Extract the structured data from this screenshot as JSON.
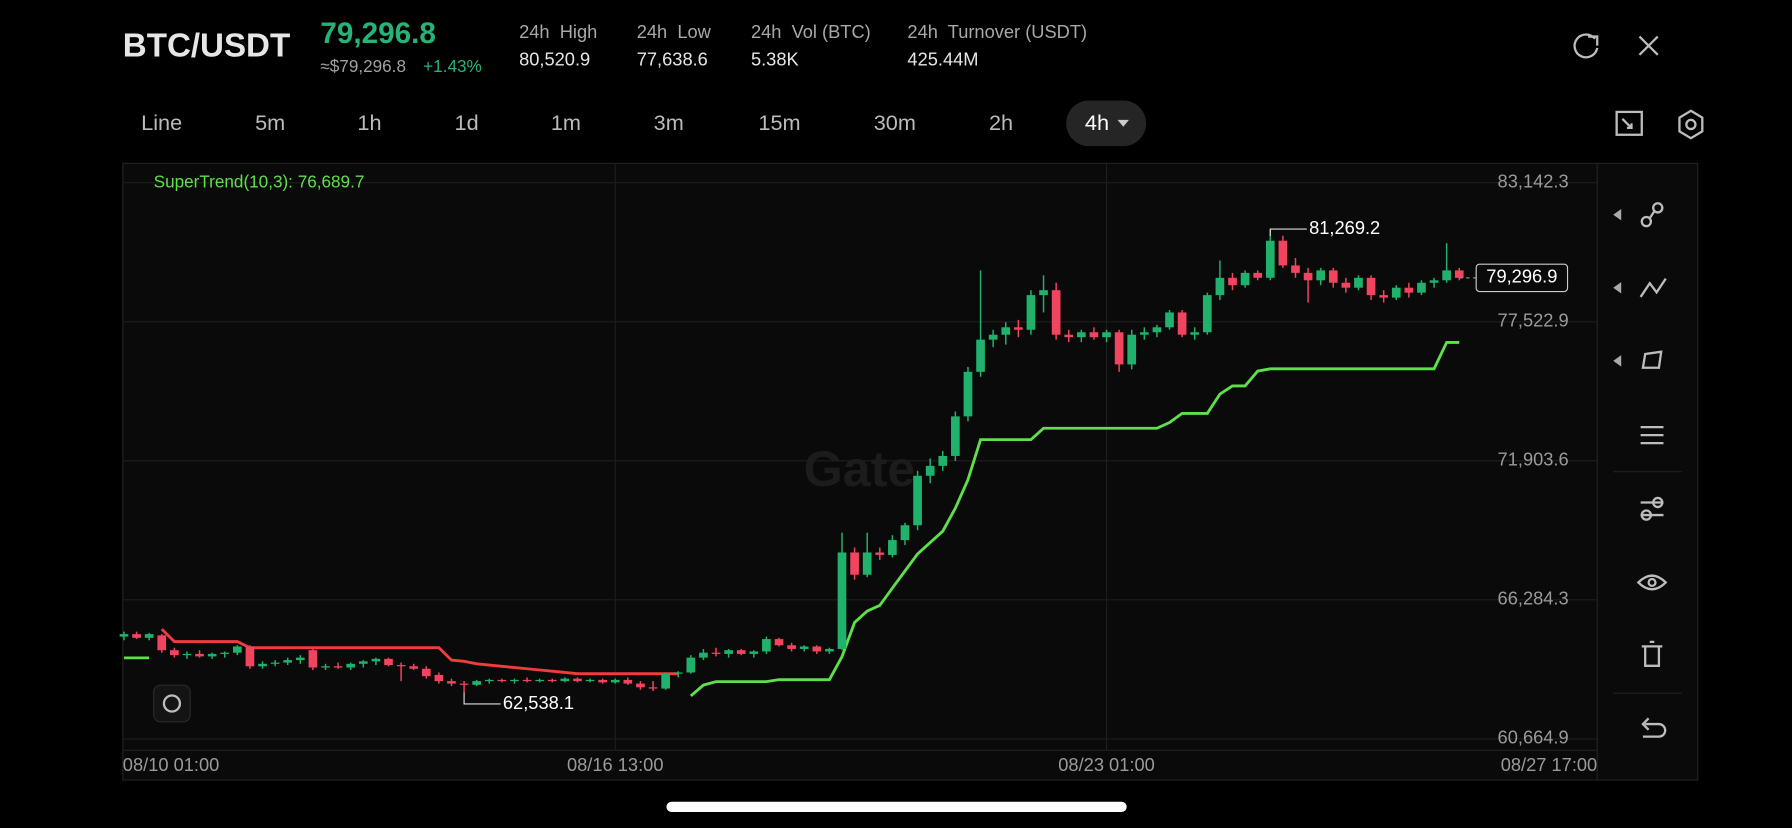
{
  "header": {
    "symbol": "BTC/USDT",
    "price": "79,296.8",
    "price_usd": "≈$79,296.8",
    "change": "+1.43%",
    "stats": [
      {
        "label": "24h  High",
        "value": "80,520.9"
      },
      {
        "label": "24h  Low",
        "value": "77,638.6"
      },
      {
        "label": "24h  Vol (BTC)",
        "value": "5.38K"
      },
      {
        "label": "24h  Turnover (USDT)",
        "value": "425.44M"
      }
    ]
  },
  "tabs": [
    "Line",
    "5m",
    "1h",
    "1d",
    "1m",
    "3m",
    "15m",
    "30m",
    "2h",
    "4h"
  ],
  "chart_data": {
    "type": "candlestick",
    "indicator_label": "SuperTrend(10,3): 76,689.7",
    "watermark": "Gate",
    "up_color": "#20b26c",
    "down_color": "#f0445f",
    "grid": true,
    "categories": [
      "08/10 01:00",
      null,
      null,
      null,
      null,
      null,
      null,
      null,
      null,
      null,
      null,
      null,
      null,
      null,
      null,
      null,
      null,
      null,
      null,
      null,
      null,
      null,
      null,
      null,
      null,
      null,
      null,
      null,
      null,
      null,
      null,
      null,
      null,
      null,
      null,
      null,
      null,
      null,
      null,
      "08/16 13:00",
      null,
      null,
      null,
      null,
      null,
      null,
      null,
      null,
      null,
      null,
      null,
      null,
      null,
      null,
      null,
      null,
      null,
      null,
      null,
      null,
      null,
      null,
      null,
      null,
      null,
      null,
      null,
      null,
      null,
      null,
      null,
      null,
      null,
      null,
      null,
      null,
      null,
      null,
      "08/23 01:00",
      null,
      null,
      null,
      null,
      null,
      null,
      null,
      null,
      null,
      null,
      null,
      null,
      null,
      null,
      null,
      null,
      null,
      null,
      null,
      null,
      null,
      null,
      null,
      null,
      null,
      null,
      null,
      "08/27 17:00"
    ],
    "ohlc": [
      [
        64800,
        65000,
        64650,
        64900
      ],
      [
        64900,
        65000,
        64700,
        64750
      ],
      [
        64750,
        64950,
        64650,
        64900
      ],
      [
        64850,
        64900,
        64150,
        64250
      ],
      [
        64250,
        64350,
        63950,
        64050
      ],
      [
        64050,
        64200,
        63900,
        64100
      ],
      [
        64100,
        64250,
        63950,
        64000
      ],
      [
        64000,
        64150,
        63900,
        64100
      ],
      [
        64100,
        64200,
        63950,
        64150
      ],
      [
        64150,
        64450,
        64050,
        64400
      ],
      [
        64400,
        64450,
        63500,
        63600
      ],
      [
        63600,
        63800,
        63500,
        63700
      ],
      [
        63700,
        63850,
        63600,
        63750
      ],
      [
        63750,
        63950,
        63650,
        63850
      ],
      [
        63850,
        64050,
        63700,
        63950
      ],
      [
        64250,
        64300,
        63450,
        63550
      ],
      [
        63550,
        63700,
        63450,
        63600
      ],
      [
        63600,
        63750,
        63500,
        63550
      ],
      [
        63550,
        63750,
        63450,
        63700
      ],
      [
        63700,
        63850,
        63550,
        63800
      ],
      [
        63800,
        63950,
        63650,
        63900
      ],
      [
        63900,
        63950,
        63600,
        63650
      ],
      [
        63650,
        63750,
        63000,
        63600
      ],
      [
        63600,
        63700,
        63450,
        63500
      ],
      [
        63500,
        63600,
        63100,
        63200
      ],
      [
        63250,
        63350,
        62900,
        63000
      ],
      [
        63000,
        63100,
        62800,
        62900
      ],
      [
        62900,
        63000,
        62538.1,
        62850
      ],
      [
        62850,
        63050,
        62800,
        63000
      ],
      [
        63000,
        63100,
        62900,
        63050
      ],
      [
        63050,
        63100,
        62950,
        63000
      ],
      [
        63000,
        63100,
        62900,
        63050
      ],
      [
        63050,
        63150,
        62950,
        63000
      ],
      [
        63000,
        63100,
        62950,
        63050
      ],
      [
        63050,
        63100,
        62950,
        63000
      ],
      [
        63000,
        63150,
        62950,
        63100
      ],
      [
        63100,
        63150,
        62950,
        63000
      ],
      [
        63000,
        63100,
        62950,
        63050
      ],
      [
        63050,
        63100,
        62900,
        62950
      ],
      [
        62950,
        63100,
        62900,
        63050
      ],
      [
        63050,
        63150,
        62850,
        62900
      ],
      [
        62900,
        63000,
        62650,
        62750
      ],
      [
        62750,
        63000,
        62600,
        62700
      ],
      [
        62700,
        63350,
        62650,
        63300
      ],
      [
        63300,
        63400,
        63150,
        63350
      ],
      [
        63350,
        64050,
        63300,
        63950
      ],
      [
        63950,
        64300,
        63850,
        64150
      ],
      [
        64150,
        64350,
        64000,
        64100
      ],
      [
        64100,
        64300,
        63950,
        64250
      ],
      [
        64250,
        64300,
        64050,
        64100
      ],
      [
        64100,
        64250,
        63950,
        64200
      ],
      [
        64200,
        64800,
        64100,
        64700
      ],
      [
        64700,
        64750,
        64400,
        64450
      ],
      [
        64450,
        64550,
        64200,
        64300
      ],
      [
        64300,
        64450,
        64200,
        64400
      ],
      [
        64400,
        64450,
        64100,
        64200
      ],
      [
        64200,
        64350,
        64100,
        64300
      ],
      [
        64300,
        69000,
        64250,
        68200
      ],
      [
        68200,
        68400,
        67100,
        67300
      ],
      [
        67300,
        69000,
        67200,
        68200
      ],
      [
        68200,
        68400,
        67900,
        68100
      ],
      [
        68100,
        68900,
        68000,
        68700
      ],
      [
        68700,
        69400,
        68500,
        69300
      ],
      [
        69300,
        71500,
        69100,
        71300
      ],
      [
        71300,
        72000,
        71000,
        71700
      ],
      [
        71700,
        72300,
        71500,
        72100
      ],
      [
        72100,
        73900,
        71900,
        73700
      ],
      [
        73700,
        75700,
        73500,
        75500
      ],
      [
        75500,
        79600,
        75300,
        76800
      ],
      [
        76800,
        77200,
        76500,
        77000
      ],
      [
        77000,
        77500,
        76600,
        77300
      ],
      [
        77300,
        77600,
        76900,
        77200
      ],
      [
        77200,
        78800,
        77000,
        78600
      ],
      [
        78600,
        79400,
        77900,
        78800
      ],
      [
        78800,
        79100,
        76800,
        77000
      ],
      [
        77000,
        77200,
        76700,
        76900
      ],
      [
        76900,
        77200,
        76700,
        77100
      ],
      [
        77100,
        77300,
        76800,
        76900
      ],
      [
        76900,
        77200,
        76700,
        77100
      ],
      [
        77100,
        77200,
        75500,
        75800
      ],
      [
        75800,
        77200,
        75600,
        77000
      ],
      [
        77000,
        77300,
        76800,
        77100
      ],
      [
        77100,
        77400,
        76900,
        77300
      ],
      [
        77300,
        78000,
        77200,
        77900
      ],
      [
        77900,
        78000,
        76900,
        77000
      ],
      [
        77000,
        77300,
        76800,
        77100
      ],
      [
        77100,
        78700,
        77000,
        78600
      ],
      [
        78600,
        80000,
        78400,
        79300
      ],
      [
        79300,
        79500,
        78800,
        79000
      ],
      [
        79000,
        79600,
        78900,
        79500
      ],
      [
        79500,
        79600,
        79200,
        79300
      ],
      [
        79300,
        81269.2,
        79200,
        80800
      ],
      [
        80800,
        81000,
        79700,
        79800
      ],
      [
        79800,
        80100,
        79300,
        79500
      ],
      [
        79500,
        79700,
        78300,
        79200
      ],
      [
        79200,
        79700,
        79000,
        79600
      ],
      [
        79600,
        79700,
        78900,
        79100
      ],
      [
        79100,
        79300,
        78700,
        78900
      ],
      [
        78900,
        79400,
        78800,
        79300
      ],
      [
        79300,
        79400,
        78400,
        78600
      ],
      [
        78600,
        78800,
        78300,
        78500
      ],
      [
        78500,
        79000,
        78400,
        78900
      ],
      [
        78900,
        79100,
        78500,
        78700
      ],
      [
        78700,
        79200,
        78600,
        79100
      ],
      [
        79100,
        79300,
        78900,
        79200
      ],
      [
        79200,
        80700,
        79100,
        79600
      ],
      [
        79600,
        79700,
        79200,
        79296.9
      ]
    ],
    "supertrend_up": {
      "color": "#5ee04a",
      "values": [
        63940,
        63940,
        63940,
        null,
        null,
        null,
        null,
        null,
        null,
        null,
        null,
        null,
        null,
        null,
        null,
        null,
        null,
        null,
        null,
        null,
        null,
        null,
        null,
        null,
        null,
        null,
        null,
        null,
        null,
        null,
        null,
        null,
        null,
        null,
        null,
        null,
        null,
        null,
        null,
        null,
        null,
        null,
        null,
        null,
        null,
        62400,
        62840,
        62980,
        62980,
        62980,
        62980,
        62980,
        63060,
        63060,
        63060,
        63060,
        63060,
        63990,
        65370,
        65830,
        66060,
        66760,
        67450,
        68140,
        68600,
        69060,
        69990,
        71140,
        72760,
        72760,
        72760,
        72760,
        72760,
        73220,
        73220,
        73220,
        73220,
        73220,
        73220,
        73220,
        73220,
        73220,
        73220,
        73450,
        73820,
        73820,
        73820,
        74600,
        74930,
        74930,
        75530,
        75620,
        75620,
        75620,
        75620,
        75620,
        75620,
        75620,
        75620,
        75620,
        75620,
        75620,
        75620,
        75620,
        75620,
        76689.7,
        76689.7
      ]
    },
    "supertrend_down": {
      "color": "#f03c3c",
      "values": [
        null,
        null,
        null,
        65100,
        64600,
        64600,
        64600,
        64600,
        64600,
        64600,
        64350,
        64350,
        64350,
        64350,
        64350,
        64350,
        64350,
        64350,
        64350,
        64350,
        64350,
        64350,
        64350,
        64350,
        64350,
        64350,
        63850,
        63800,
        63700,
        63650,
        63600,
        63550,
        63500,
        63450,
        63400,
        63350,
        63300,
        63300,
        63300,
        63300,
        63300,
        63300,
        63300,
        63300,
        63300,
        null,
        null,
        null,
        null,
        null,
        null,
        null,
        null,
        null,
        null,
        null,
        null,
        null,
        null,
        null,
        null,
        null,
        null,
        null,
        null,
        null,
        null,
        null,
        null,
        null,
        null,
        null,
        null,
        null,
        null,
        null,
        null,
        null,
        null,
        null,
        null,
        null,
        null,
        null,
        null,
        null,
        null,
        null,
        null,
        null,
        null,
        null,
        null,
        null,
        null,
        null,
        null,
        null,
        null,
        null,
        null,
        null,
        null,
        null,
        null,
        null,
        null
      ]
    },
    "high_label": {
      "value": 81269.2,
      "label": "81,269.2"
    },
    "low_label": {
      "value": 62538.1,
      "label": "62,538.1"
    },
    "last_price": {
      "value": 79296.9,
      "label": "79,296.9"
    },
    "ylim": [
      60203,
      83927
    ],
    "yticks": [
      {
        "value": 83142.3,
        "label": "83,142.3"
      },
      {
        "value": 77522.9,
        "label": "77,522.9"
      },
      {
        "value": 71903.6,
        "label": "71,903.6"
      },
      {
        "value": 66284.3,
        "label": "66,284.3"
      },
      {
        "value": 60664.9,
        "label": "60,664.9"
      }
    ]
  }
}
